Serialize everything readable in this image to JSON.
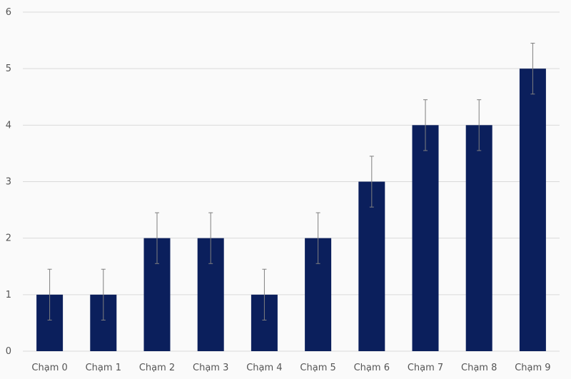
{
  "chart_data": {
    "type": "bar",
    "title": "",
    "xlabel": "",
    "ylabel": "",
    "categories": [
      "Chạm 0",
      "Chạm 1",
      "Chạm 2",
      "Chạm 3",
      "Chạm 4",
      "Chạm 5",
      "Chạm 6",
      "Chạm 7",
      "Chạm 8",
      "Chạm 9"
    ],
    "values": [
      1,
      1,
      2,
      2,
      1,
      2,
      3,
      4,
      4,
      5
    ],
    "error_bars": [
      0.45,
      0.45,
      0.45,
      0.45,
      0.45,
      0.45,
      0.45,
      0.45,
      0.45,
      0.45
    ],
    "ylim": [
      0,
      6
    ],
    "yticks": [
      "0",
      "1",
      "2",
      "3",
      "4",
      "5",
      "6"
    ],
    "grid": true,
    "legend": "none",
    "colors": {
      "bar": "#0b1f5c",
      "error_bar": "#7f7f7f",
      "grid": "#d9d9d9",
      "background": "#fafafa",
      "text": "#555555"
    }
  }
}
